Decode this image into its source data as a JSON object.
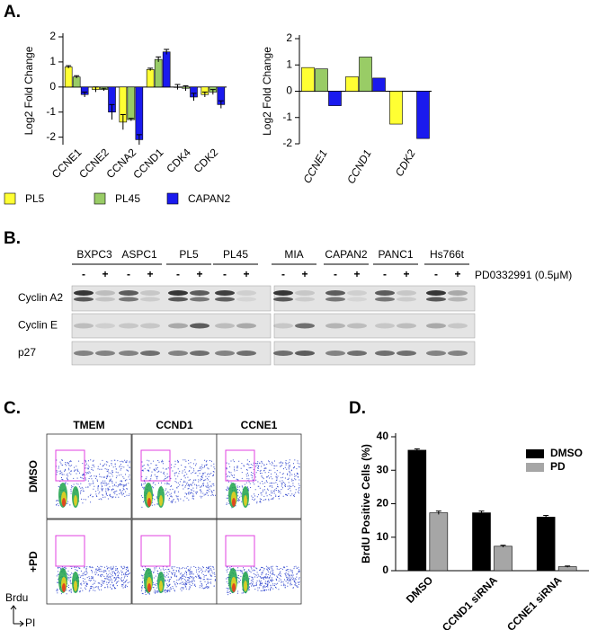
{
  "panel_labels": [
    "A.",
    "B.",
    "C.",
    "D."
  ],
  "chart_data": [
    {
      "type": "bar",
      "ylabel": "Log2 Fold Change",
      "categories": [
        "CCNE1",
        "CCNE2",
        "CCNA2",
        "CCND1",
        "CDK4",
        "CDK2"
      ],
      "series": [
        {
          "name": "PL5",
          "color": "#ffff33",
          "values": [
            0.8,
            -0.1,
            -1.4,
            0.7,
            0.0,
            -0.3
          ],
          "errors": [
            0.05,
            0.1,
            0.3,
            0.05,
            0.1,
            0.1
          ]
        },
        {
          "name": "PL45",
          "color": "#99cc66",
          "values": [
            0.4,
            -0.1,
            -1.3,
            1.1,
            -0.05,
            -0.2
          ],
          "errors": [
            0.05,
            0.05,
            0.05,
            0.1,
            0.1,
            0.1
          ]
        },
        {
          "name": "CAPAN2",
          "color": "#1a1aee",
          "values": [
            -0.3,
            -1.0,
            -2.1,
            1.4,
            -0.4,
            -0.7
          ],
          "errors": [
            0.1,
            0.3,
            0.2,
            0.1,
            0.15,
            0.15
          ]
        }
      ],
      "ylim": [
        -2.3,
        2
      ],
      "yticks": [
        -2,
        -1,
        0,
        1,
        2
      ]
    },
    {
      "type": "bar",
      "ylabel": "Log2 Fold Change",
      "label_style": "italic",
      "categories": [
        "CCNE1",
        "CCND1",
        "CDK2"
      ],
      "series": [
        {
          "color": "#ffff33",
          "values": [
            0.9,
            0.55,
            -1.25
          ]
        },
        {
          "color": "#99cc66",
          "values": [
            0.85,
            1.3,
            null
          ]
        },
        {
          "color": "#1a1aee",
          "values": [
            -0.55,
            0.5,
            -1.8
          ]
        }
      ],
      "ylim": [
        -2,
        2
      ],
      "yticks": [
        -2,
        -1,
        0,
        1,
        2
      ]
    },
    {
      "type": "bar",
      "ylabel": "BrdU Positive Cells (%)",
      "label_style": "bold",
      "categories": [
        "DMSO",
        "CCND1 siRNA",
        "CCNE1 siRNA"
      ],
      "series": [
        {
          "name": "DMSO",
          "color": "#000000",
          "values": [
            36,
            17.3,
            16
          ],
          "errors": [
            0.4,
            0.5,
            0.5
          ]
        },
        {
          "name": "PD",
          "color": "#a6a6a6",
          "values": [
            17.3,
            7.3,
            1.2
          ],
          "errors": [
            0.5,
            0.3,
            0.2
          ]
        }
      ],
      "ylim": [
        0,
        40
      ],
      "yticks": [
        0,
        10,
        20,
        30,
        40
      ]
    }
  ],
  "blot": {
    "cell_lines": [
      "BXPC3",
      "ASPC1",
      "PL5",
      "PL45",
      "MIA",
      "CAPAN2",
      "PANC1",
      "Hs766t"
    ],
    "treatment_signs": [
      "-",
      "+"
    ],
    "treatment": "PD0332991 (0.5μM)",
    "rows": [
      "Cyclin A2",
      "Cyclin E",
      "p27"
    ]
  },
  "flow": {
    "columns": [
      "TMEM",
      "CCND1",
      "CCNE1"
    ],
    "rows": [
      "DMSO",
      "+PD"
    ],
    "y_axis": "Brdu",
    "x_axis": "PI"
  }
}
